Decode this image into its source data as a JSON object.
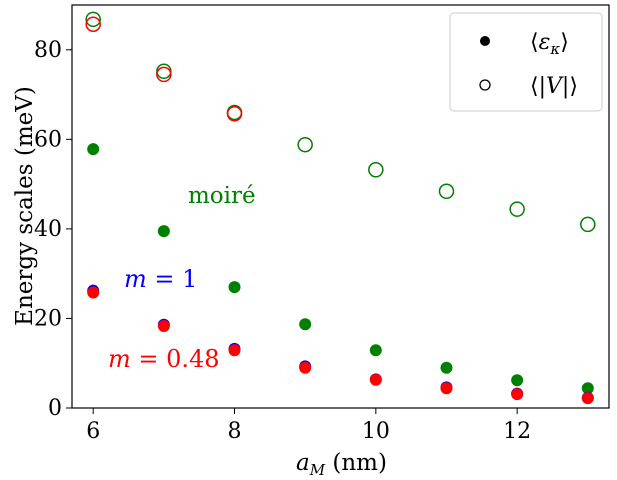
{
  "chart_data": {
    "type": "scatter",
    "xlabel_var": "a",
    "xlabel_sub": "M",
    "xlabel_unit": " (nm)",
    "ylabel": "Energy scales (meV)",
    "xlim": [
      5.7,
      13.3
    ],
    "ylim": [
      0,
      90
    ],
    "xticks": [
      "6",
      "8",
      "10",
      "12"
    ],
    "yticks": [
      "0",
      "20",
      "40",
      "60",
      "80"
    ],
    "colors": {
      "moire": "#008000",
      "m1": "#0000ff",
      "m048": "#ff0000"
    },
    "x": [
      6,
      7,
      8,
      9,
      10,
      11,
      12,
      13
    ],
    "series": [
      {
        "key": "moire_eps",
        "color_key": "moire",
        "marker": "filled",
        "values": [
          57.8,
          39.5,
          27.0,
          18.7,
          12.9,
          9.0,
          6.2,
          4.4
        ]
      },
      {
        "key": "m1_eps",
        "color_key": "m1",
        "marker": "filled",
        "values": [
          26.2,
          18.6,
          13.2,
          9.3,
          6.4,
          4.6,
          3.2,
          2.3
        ]
      },
      {
        "key": "m048_eps",
        "color_key": "m048",
        "marker": "filled",
        "values": [
          25.8,
          18.3,
          12.9,
          9.0,
          6.3,
          4.4,
          3.1,
          2.2
        ]
      },
      {
        "key": "moire_V",
        "color_key": "moire",
        "marker": "open",
        "values": [
          86.8,
          75.2,
          66.0,
          58.8,
          53.2,
          48.4,
          44.4,
          41.0
        ]
      },
      {
        "key": "m048_V",
        "color_key": "m048",
        "marker": "open",
        "values": [
          85.7,
          74.5,
          65.7
        ]
      }
    ],
    "annotations": [
      {
        "key": "moire",
        "text": "moiré",
        "color_key": "moire"
      },
      {
        "key": "m1",
        "var": "m",
        "text": " = 1",
        "color_key": "m1"
      },
      {
        "key": "m048",
        "var": "m",
        "text": " = 0.48",
        "color_key": "m048"
      }
    ],
    "legend": {
      "placement": "top-right",
      "entries": [
        {
          "marker": "filled",
          "var": "ε",
          "sub": "κ"
        },
        {
          "marker": "open",
          "var": "|V|",
          "sub": ""
        }
      ]
    }
  }
}
